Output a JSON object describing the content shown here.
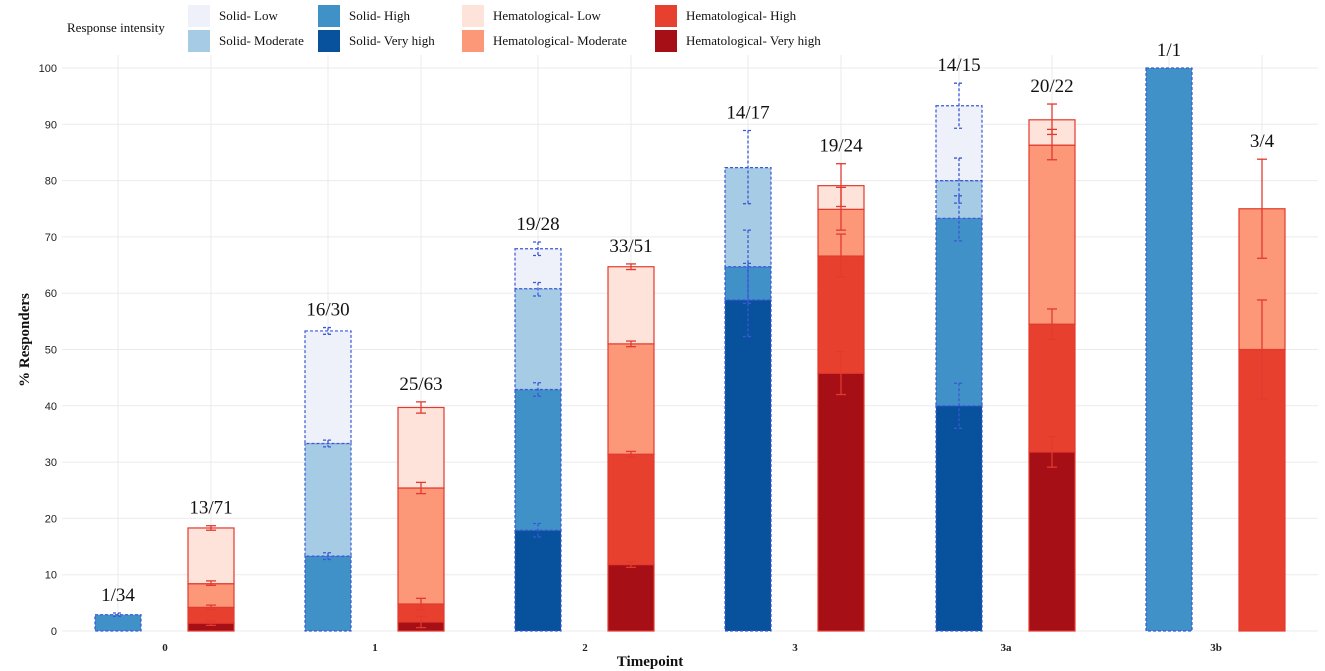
{
  "chart_data": {
    "type": "bar",
    "subtype": "stacked-grouped",
    "title": "",
    "xlabel": "Timepoint",
    "ylabel": "% Responders",
    "ylim": [
      0,
      100
    ],
    "yticks": [
      0,
      10,
      20,
      30,
      40,
      50,
      60,
      70,
      80,
      90,
      100
    ],
    "grid": true,
    "legend": {
      "title": "Response intensity",
      "placement": "top",
      "entries": [
        {
          "label": "Solid- Low",
          "color": "#eef0fa"
        },
        {
          "label": "Solid- Moderate",
          "color": "#a6cbe4"
        },
        {
          "label": "Solid- High",
          "color": "#4191c9"
        },
        {
          "label": "Solid- Very high",
          "color": "#08519c"
        },
        {
          "label": "Hematological- Low",
          "color": "#fde3da"
        },
        {
          "label": "Hematological- Moderate",
          "color": "#fc9878"
        },
        {
          "label": "Hematological- High",
          "color": "#e8402f"
        },
        {
          "label": "Hematological- Very high",
          "color": "#a50f15"
        }
      ]
    },
    "categories": [
      "0",
      "1",
      "2",
      "3",
      "3a",
      "3b"
    ],
    "groups": [
      {
        "name": "Solid",
        "ratios": [
          "1/34",
          "16/30",
          "19/28",
          "14/17",
          "14/15",
          "1/1"
        ],
        "outline": "dashed"
      },
      {
        "name": "Hematological",
        "ratios": [
          "13/71",
          "25/63",
          "33/51",
          "19/24",
          "20/22",
          "3/4"
        ],
        "outline": "solid"
      }
    ],
    "series": [
      {
        "name": "Solid- Very high",
        "group": "Solid",
        "values": [
          0,
          0,
          17.9,
          58.8,
          40.0,
          0
        ]
      },
      {
        "name": "Solid- High",
        "group": "Solid",
        "values": [
          2.9,
          13.3,
          25.0,
          5.9,
          33.3,
          100
        ]
      },
      {
        "name": "Solid- Moderate",
        "group": "Solid",
        "values": [
          0,
          20.0,
          17.9,
          17.6,
          6.7,
          0
        ]
      },
      {
        "name": "Solid- Low",
        "group": "Solid",
        "values": [
          0,
          20.0,
          7.1,
          0,
          13.3,
          0
        ]
      },
      {
        "name": "Hematological- Very high",
        "group": "Hematological",
        "values": [
          1.4,
          1.6,
          11.8,
          45.8,
          31.8,
          0
        ]
      },
      {
        "name": "Hematological- High",
        "group": "Hematological",
        "values": [
          2.8,
          3.2,
          19.6,
          20.8,
          22.7,
          50.0
        ]
      },
      {
        "name": "Hematological- Moderate",
        "group": "Hematological",
        "values": [
          4.2,
          20.6,
          19.6,
          8.3,
          31.8,
          25.0
        ]
      },
      {
        "name": "Hematological- Low",
        "group": "Hematological",
        "values": [
          9.9,
          14.3,
          13.7,
          4.2,
          4.5,
          0
        ]
      }
    ],
    "error_bars": {
      "Solid": [
        [
          [
            2.9,
            0.3
          ]
        ],
        [
          [
            13.3,
            0.6
          ],
          [
            33.3,
            0.6
          ],
          [
            53.3,
            0.6
          ]
        ],
        [
          [
            17.9,
            1.2
          ],
          [
            42.9,
            1.2
          ],
          [
            60.7,
            1.2
          ],
          [
            67.9,
            1.2
          ]
        ],
        [
          [
            58.8,
            6.5
          ],
          [
            64.7,
            6.5
          ],
          [
            82.4,
            6.5
          ]
        ],
        [
          [
            40.0,
            4.0
          ],
          [
            73.3,
            4.0
          ],
          [
            80.0,
            4.0
          ],
          [
            93.3,
            4.0
          ]
        ],
        []
      ],
      "Hematological": [
        [
          [
            1.4,
            0.4
          ],
          [
            4.2,
            0.4
          ],
          [
            8.5,
            0.4
          ],
          [
            18.3,
            0.4
          ]
        ],
        [
          [
            1.6,
            1.0
          ],
          [
            4.8,
            1.0
          ],
          [
            25.4,
            1.0
          ],
          [
            39.7,
            1.0
          ]
        ],
        [
          [
            11.8,
            0.5
          ],
          [
            31.4,
            0.5
          ],
          [
            51.0,
            0.5
          ],
          [
            64.7,
            0.5
          ]
        ],
        [
          [
            45.8,
            3.8
          ],
          [
            66.7,
            3.8
          ],
          [
            75.0,
            3.8
          ],
          [
            79.2,
            3.8
          ]
        ],
        [
          [
            31.8,
            2.7
          ],
          [
            54.5,
            2.7
          ],
          [
            86.4,
            2.7
          ],
          [
            90.9,
            2.7
          ]
        ],
        [
          [
            50.0,
            8.8
          ],
          [
            75.0,
            8.8
          ]
        ]
      ]
    }
  }
}
